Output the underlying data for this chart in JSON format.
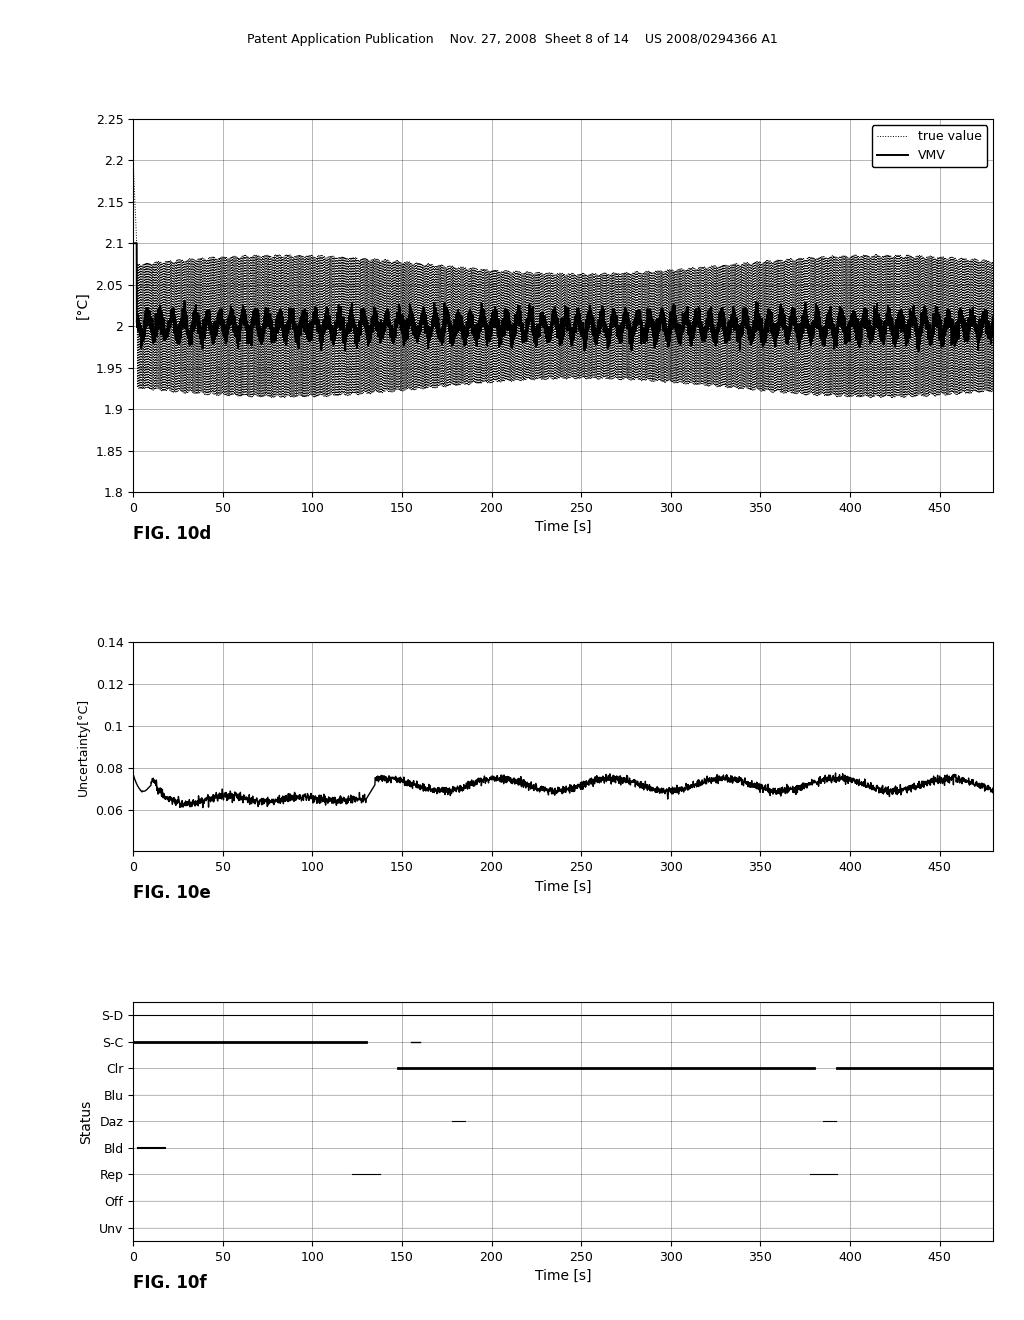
{
  "fig10d": {
    "ylabel": "[°C]",
    "xlabel": "Time [s]",
    "fig_label": "FIG. 10d",
    "xlim": [
      0,
      480
    ],
    "ylim": [
      1.8,
      2.25
    ],
    "yticks": [
      1.8,
      1.85,
      1.9,
      1.95,
      2.0,
      2.05,
      2.1,
      2.15,
      2.2,
      2.25
    ],
    "ytick_labels": [
      "1.8",
      "1.85",
      "1.9",
      "1.95",
      "2",
      "2.05",
      "2.1",
      "2.15",
      "2.2",
      "2.25"
    ],
    "xticks": [
      0,
      50,
      100,
      150,
      200,
      250,
      300,
      350,
      400,
      450
    ],
    "true_value": 2.0,
    "oscillation_amplitude": 0.075,
    "oscillation_freq": 1.5,
    "vmv_noise": 0.012
  },
  "fig10e": {
    "ylabel": "Uncertainty[°C]",
    "xlabel": "Time [s]",
    "fig_label": "FIG. 10e",
    "xlim": [
      0,
      480
    ],
    "ylim": [
      0.04,
      0.14
    ],
    "yticks": [
      0.06,
      0.08,
      0.1,
      0.12,
      0.14
    ],
    "ytick_labels": [
      "0.06",
      "0.08",
      "0.1",
      "0.12",
      "0.14"
    ],
    "xticks": [
      0,
      50,
      100,
      150,
      200,
      250,
      300,
      350,
      400,
      450
    ],
    "level1": 0.065,
    "level2": 0.072,
    "transition": 130
  },
  "fig10f": {
    "ylabel": "Status",
    "xlabel": "Time [s]",
    "fig_label": "FIG. 10f",
    "xlim": [
      0,
      480
    ],
    "xticks": [
      0,
      50,
      100,
      150,
      200,
      250,
      300,
      350,
      400,
      450
    ],
    "status_labels": [
      "S-D",
      "S-C",
      "Clr",
      "Blu",
      "Daz",
      "Bld",
      "Rep",
      "Off",
      "Unv"
    ],
    "status_levels": [
      9,
      8,
      7,
      6,
      5,
      4,
      3,
      2,
      1
    ]
  },
  "header_text": "Patent Application Publication    Nov. 27, 2008  Sheet 8 of 14    US 2008/0294366 A1",
  "background_color": "#ffffff"
}
